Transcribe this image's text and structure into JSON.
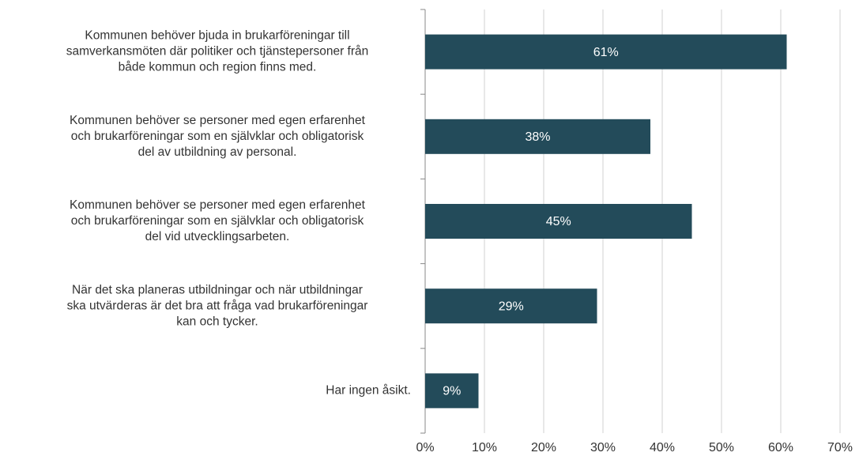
{
  "chart_data": {
    "type": "barh",
    "categories": [
      [
        "Kommunen behöver bjuda in brukarföreningar till",
        "samverkansmöten där politiker och tjänstepersoner från",
        "både kommun och region finns med."
      ],
      [
        "Kommunen behöver se personer med egen erfarenhet",
        "och brukarföreningar som en självklar och obligatorisk",
        "del av utbildning av personal."
      ],
      [
        "Kommunen behöver se personer med egen erfarenhet",
        "och brukarföreningar som en självklar och obligatorisk",
        "del vid utvecklingsarbeten."
      ],
      [
        "När det ska planeras utbildningar och när utbildningar",
        "ska utvärderas är det bra att fråga vad brukarföreningar",
        "kan och tycker."
      ],
      [
        "Har ingen åsikt."
      ]
    ],
    "values": [
      61,
      38,
      45,
      29,
      9
    ],
    "value_labels": [
      "61%",
      "38%",
      "45%",
      "29%",
      "9%"
    ],
    "color": "#234b5a",
    "xlim": [
      0,
      70
    ],
    "xticks": [
      {
        "value": 0,
        "label": "0%"
      },
      {
        "value": 10,
        "label": "10%"
      },
      {
        "value": 20,
        "label": "20%"
      },
      {
        "value": 30,
        "label": "30%"
      },
      {
        "value": 40,
        "label": "40%"
      },
      {
        "value": 50,
        "label": "50%"
      },
      {
        "value": 60,
        "label": "60%"
      },
      {
        "value": 70,
        "label": "70%"
      }
    ],
    "grid": true
  }
}
